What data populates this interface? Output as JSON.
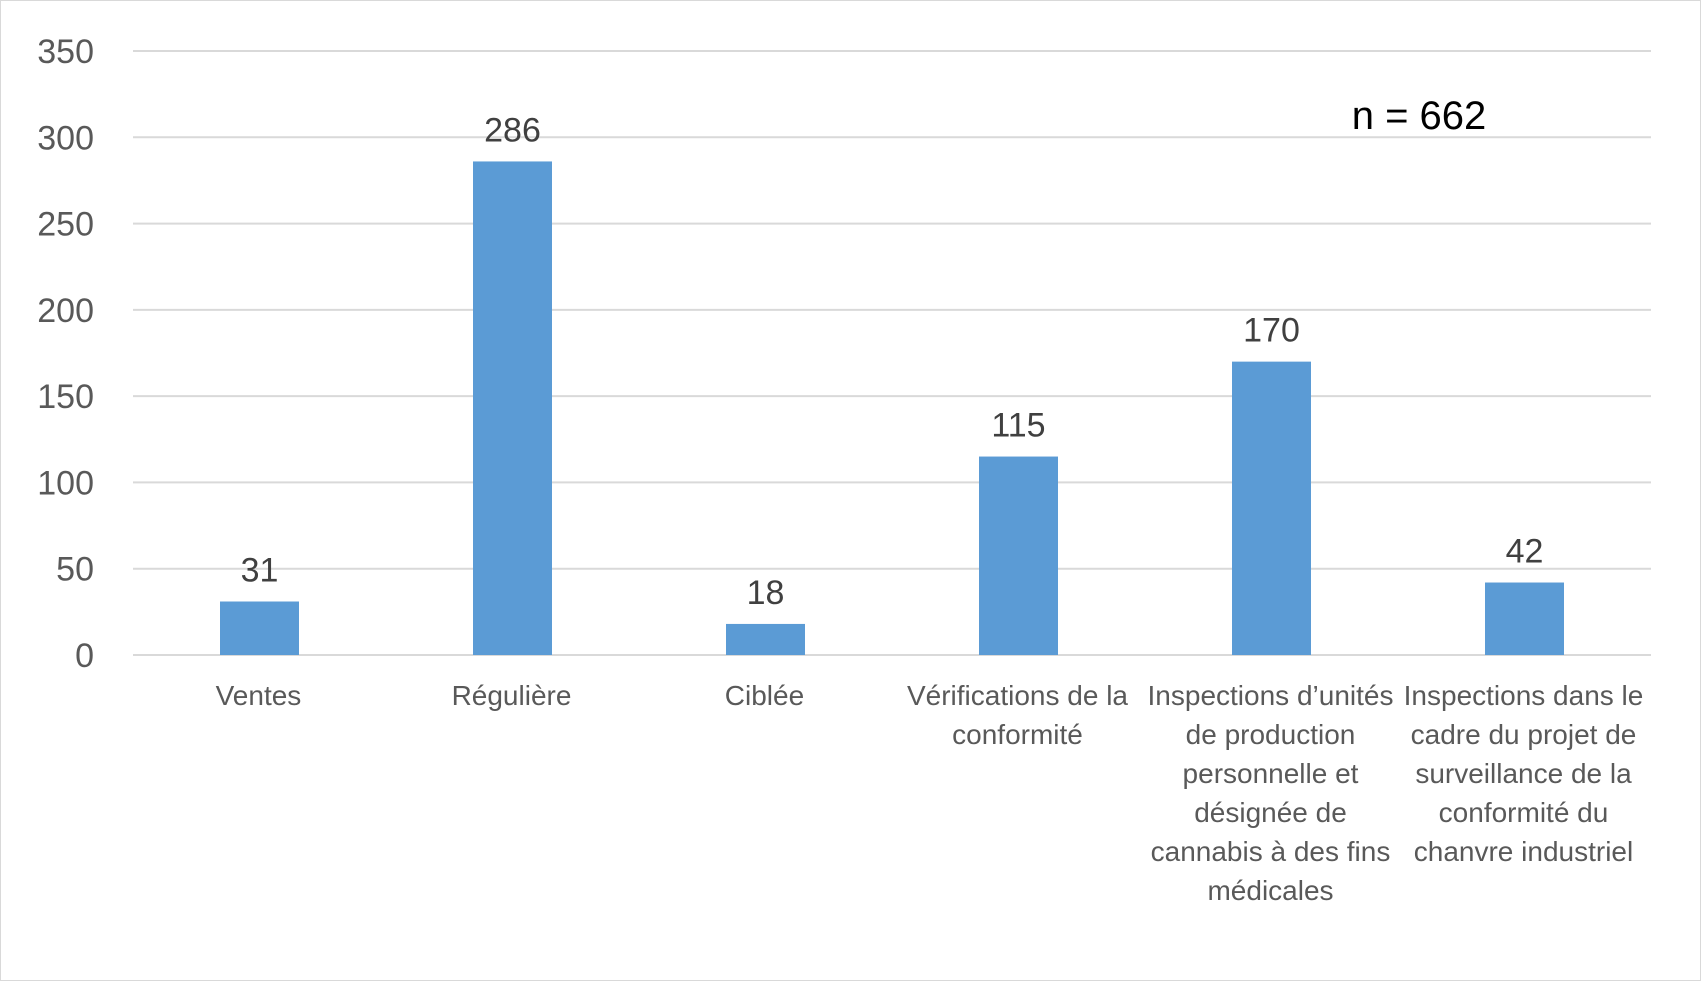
{
  "chart_data": {
    "type": "bar",
    "categories": [
      "Ventes",
      "Régulière",
      "Ciblée",
      "Vérifications de la conformité",
      "Inspections d’unités de production personnelle et désignée de cannabis à des fins médicales",
      "Inspections dans le cadre du projet de surveillance de la conformité du chanvre industriel"
    ],
    "values": [
      31,
      286,
      18,
      115,
      170,
      42
    ],
    "ylim": [
      0,
      350
    ],
    "yticks": [
      0,
      50,
      100,
      150,
      200,
      250,
      300,
      350
    ],
    "annotation": "n = 662",
    "grid": true,
    "colors": {
      "bar": "#5b9bd5",
      "grid": "#d9d9d9",
      "axis": "#d9d9d9"
    }
  }
}
